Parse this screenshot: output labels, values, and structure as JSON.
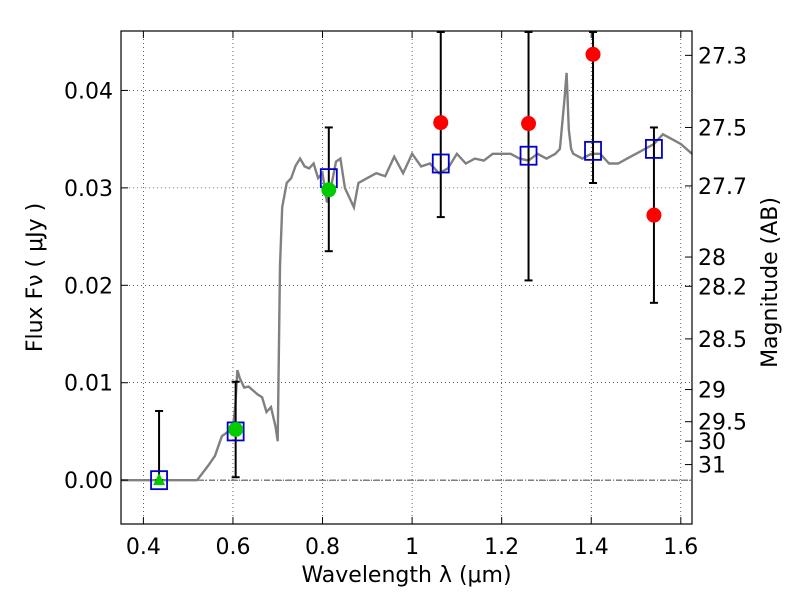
{
  "chart_data": {
    "type": "scatter",
    "xlabel": "Wavelength  λ (μm)",
    "ylabel": "Flux  Fν  ( μJy )",
    "ylabel_right": "Magnitude (AB)",
    "xlim": [
      0.35,
      1.625
    ],
    "ylim": [
      -0.0045,
      0.0461
    ],
    "grid": true,
    "x_ticks": [
      {
        "value": 0.4,
        "label": "0.4"
      },
      {
        "value": 0.6,
        "label": "0.6"
      },
      {
        "value": 0.8,
        "label": "0.8"
      },
      {
        "value": 1.0,
        "label": "1"
      },
      {
        "value": 1.2,
        "label": "1.2"
      },
      {
        "value": 1.4,
        "label": "1.4"
      },
      {
        "value": 1.6,
        "label": "1.6"
      }
    ],
    "y_ticks": [
      {
        "value": 0.0,
        "label": "0.00"
      },
      {
        "value": 0.01,
        "label": "0.01"
      },
      {
        "value": 0.02,
        "label": "0.02"
      },
      {
        "value": 0.03,
        "label": "0.03"
      },
      {
        "value": 0.04,
        "label": "0.04"
      }
    ],
    "mag_ticks": [
      {
        "flux": 0.0436,
        "label": "27.3"
      },
      {
        "flux": 0.0362,
        "label": "27.5"
      },
      {
        "flux": 0.0302,
        "label": "27.7"
      },
      {
        "flux": 0.0229,
        "label": "28"
      },
      {
        "flux": 0.0199,
        "label": "28.2"
      },
      {
        "flux": 0.0145,
        "label": "28.5"
      },
      {
        "flux": 0.0093,
        "label": "29"
      },
      {
        "flux": 0.006,
        "label": "29.5"
      },
      {
        "flux": 0.004,
        "label": "30"
      },
      {
        "flux": 0.0016,
        "label": "31"
      }
    ],
    "model_color": "#808080",
    "model_spectrum": {
      "x": [
        0.35,
        0.52,
        0.545,
        0.56,
        0.575,
        0.59,
        0.6,
        0.605,
        0.61,
        0.615,
        0.625,
        0.635,
        0.645,
        0.655,
        0.665,
        0.675,
        0.685,
        0.695,
        0.7,
        0.705,
        0.71,
        0.72,
        0.73,
        0.74,
        0.75,
        0.76,
        0.77,
        0.78,
        0.79,
        0.8,
        0.81,
        0.82,
        0.83,
        0.84,
        0.85,
        0.86,
        0.87,
        0.88,
        0.9,
        0.92,
        0.94,
        0.96,
        0.98,
        1.0,
        1.02,
        1.04,
        1.06,
        1.08,
        1.1,
        1.12,
        1.14,
        1.16,
        1.18,
        1.2,
        1.22,
        1.24,
        1.26,
        1.28,
        1.3,
        1.32,
        1.33,
        1.34,
        1.345,
        1.35,
        1.355,
        1.36,
        1.38,
        1.4,
        1.42,
        1.44,
        1.46,
        1.48,
        1.5,
        1.52,
        1.54,
        1.56,
        1.58,
        1.6,
        1.625
      ],
      "y": [
        0.0,
        0.0,
        0.0015,
        0.0025,
        0.0045,
        0.005,
        0.0055,
        0.0075,
        0.0113,
        0.0105,
        0.0095,
        0.0096,
        0.0092,
        0.0088,
        0.0085,
        0.007,
        0.0075,
        0.0055,
        0.004,
        0.022,
        0.028,
        0.0305,
        0.031,
        0.0323,
        0.033,
        0.0322,
        0.032,
        0.0325,
        0.031,
        0.0315,
        0.0285,
        0.0303,
        0.0327,
        0.033,
        0.03,
        0.029,
        0.028,
        0.0305,
        0.031,
        0.0315,
        0.0312,
        0.0332,
        0.0315,
        0.0335,
        0.0322,
        0.0325,
        0.0315,
        0.032,
        0.0335,
        0.0325,
        0.033,
        0.0328,
        0.0335,
        0.0335,
        0.0335,
        0.033,
        0.0328,
        0.0335,
        0.033,
        0.0335,
        0.034,
        0.039,
        0.0418,
        0.036,
        0.034,
        0.0335,
        0.033,
        0.0335,
        0.0335,
        0.0325,
        0.0325,
        0.033,
        0.0335,
        0.034,
        0.0345,
        0.0355,
        0.035,
        0.0345,
        0.0335
      ]
    },
    "series": [
      {
        "marker": "square-open",
        "color": "#0000cc",
        "points": [
          {
            "x": 0.435,
            "y": 0.0
          },
          {
            "x": 0.606,
            "y": 0.005
          },
          {
            "x": 0.814,
            "y": 0.031
          },
          {
            "x": 1.064,
            "y": 0.0325
          },
          {
            "x": 1.26,
            "y": 0.0333
          },
          {
            "x": 1.404,
            "y": 0.0338
          },
          {
            "x": 1.54,
            "y": 0.034
          }
        ]
      },
      {
        "marker": "circle",
        "color": "#ff0000",
        "points": [
          {
            "x": 1.064,
            "y": 0.0367,
            "err_lo": 0.027,
            "err_hi": 0.046
          },
          {
            "x": 1.26,
            "y": 0.0366,
            "err_lo": 0.0205,
            "err_hi": 0.046
          },
          {
            "x": 1.404,
            "y": 0.0437,
            "err_lo": 0.0305,
            "err_hi": 0.046
          },
          {
            "x": 1.54,
            "y": 0.0272,
            "err_lo": 0.0182,
            "err_hi": 0.0362
          }
        ]
      },
      {
        "marker": "circle",
        "color": "#00cc00",
        "points": [
          {
            "x": 0.606,
            "y": 0.0052,
            "err_lo": 0.0003,
            "err_hi": 0.0101
          },
          {
            "x": 0.814,
            "y": 0.0298,
            "err_lo": 0.0235,
            "err_hi": 0.0362
          }
        ]
      },
      {
        "marker": "triangle",
        "color": "#00cc00",
        "points": [
          {
            "x": 0.435,
            "y": 0.0,
            "err_lo": 0.0,
            "err_hi": 0.0071
          }
        ]
      }
    ]
  }
}
